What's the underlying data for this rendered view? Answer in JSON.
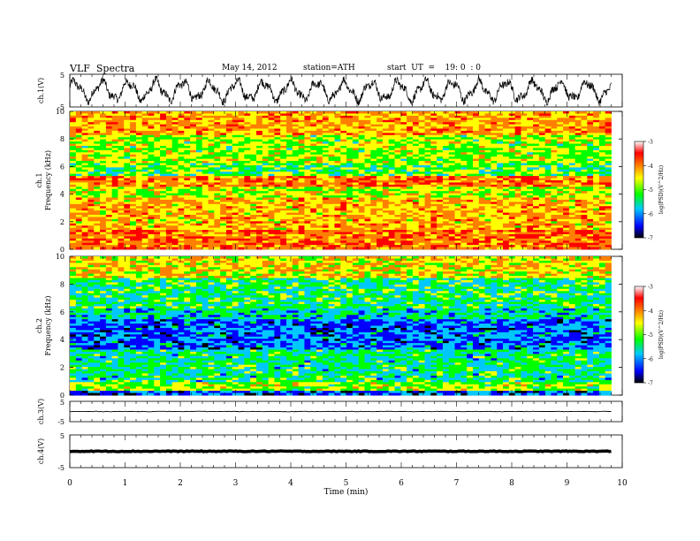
{
  "header": {
    "title": "VLF  Spectra",
    "date": "May 14, 2012",
    "station": "station=ATH",
    "start": "start  UT  =    19: 0  : 0"
  },
  "chart_data": [
    {
      "type": "line",
      "name": "ch1-waveform",
      "ylabel": "ch.1(V)",
      "yticks": [
        "5",
        "-5"
      ],
      "ylim": [
        -5,
        5
      ],
      "xlim": [
        0,
        9.8
      ],
      "description_values": {
        "shape": "quasi-periodic oscillation, ~20 cycles over 9.8 min, amplitude ~ +/-4 V"
      }
    },
    {
      "type": "heatmap",
      "name": "ch1-spectrogram",
      "ylabel": "ch.1\nFrequency  (kHz)",
      "ylabel_lines": [
        "ch.1",
        "Frequency  (kHz)"
      ],
      "yticks": [
        "0",
        "2",
        "4",
        "6",
        "8",
        "10"
      ],
      "ylim": [
        0,
        10
      ],
      "xlim": [
        0,
        9.8
      ],
      "colorbar": {
        "label": "log(PSD)(V^2/Hz)",
        "ticks": [
          "-3",
          "-4",
          "-5",
          "-6",
          "-7"
        ],
        "range": [
          -7,
          -3
        ]
      }
    },
    {
      "type": "heatmap",
      "name": "ch2-spectrogram",
      "ylabel_lines": [
        "ch.2",
        "Frequency  (kHz)"
      ],
      "yticks": [
        "0",
        "2",
        "4",
        "6",
        "8",
        "10"
      ],
      "ylim": [
        0,
        10
      ],
      "xlim": [
        0,
        9.8
      ],
      "colorbar": {
        "label": "log(PSD)(V^2/Hz)",
        "ticks": [
          "-3",
          "-4",
          "-5",
          "-6",
          "-7"
        ],
        "range": [
          -7,
          -3
        ]
      }
    },
    {
      "type": "line",
      "name": "ch3-waveform",
      "ylabel": "ch.3(V)",
      "yticks": [
        "5",
        "-5"
      ],
      "ylim": [
        -5,
        5
      ],
      "value": 0
    },
    {
      "type": "line",
      "name": "ch4-waveform",
      "ylabel": "ch.4(V)",
      "yticks": [
        "5",
        "-5"
      ],
      "ylim": [
        -5,
        5
      ],
      "value": 0
    }
  ],
  "xaxis": {
    "label": "Time  (min)",
    "ticks": [
      "0",
      "1",
      "2",
      "3",
      "4",
      "5",
      "6",
      "7",
      "8",
      "9",
      "10"
    ],
    "range": [
      0,
      10
    ]
  },
  "colors": {
    "colormap": [
      "#000000",
      "#0000ff",
      "#00c8ff",
      "#00ff00",
      "#ffff00",
      "#ff8000",
      "#ff0000",
      "#ffffff"
    ]
  }
}
